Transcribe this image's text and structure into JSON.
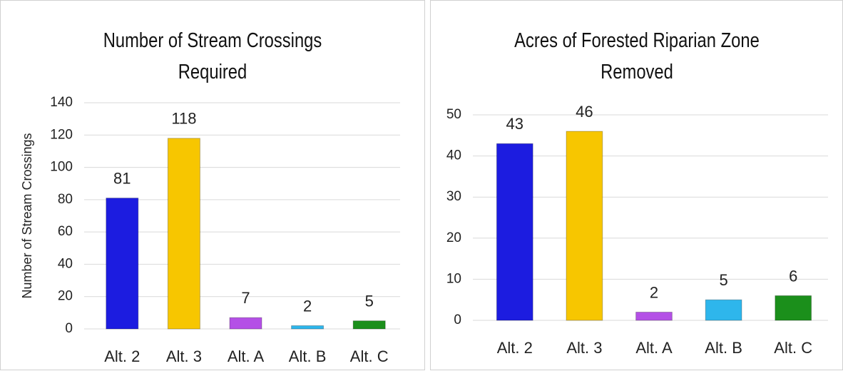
{
  "chart_data": [
    {
      "type": "bar",
      "title": "Number of Stream Crossings Required",
      "y_label": "Number of Stream Crossings",
      "categories": [
        "Alt. 2",
        "Alt. 3",
        "Alt. A",
        "Alt. B",
        "Alt. C"
      ],
      "values": [
        81,
        118,
        7,
        2,
        5
      ],
      "colors": [
        "#1c1ce0",
        "#f7c600",
        "#b450e6",
        "#2eb6ec",
        "#1b8f1b"
      ],
      "ylim": [
        0,
        140
      ],
      "yticks": [
        0,
        20,
        40,
        60,
        80,
        100,
        120,
        140
      ],
      "grid": true
    },
    {
      "type": "bar",
      "title": "Acres of Forested Riparian Zone Removed",
      "categories": [
        "Alt. 2",
        "Alt. 3",
        "Alt. A",
        "Alt. B",
        "Alt. C"
      ],
      "values": [
        43,
        46,
        2,
        5,
        6
      ],
      "colors": [
        "#1c1ce0",
        "#f7c600",
        "#b450e6",
        "#2eb6ec",
        "#1b8f1b"
      ],
      "ylim": [
        0,
        50
      ],
      "yticks": [
        0,
        10,
        20,
        30,
        40,
        50
      ],
      "grid": true
    }
  ]
}
